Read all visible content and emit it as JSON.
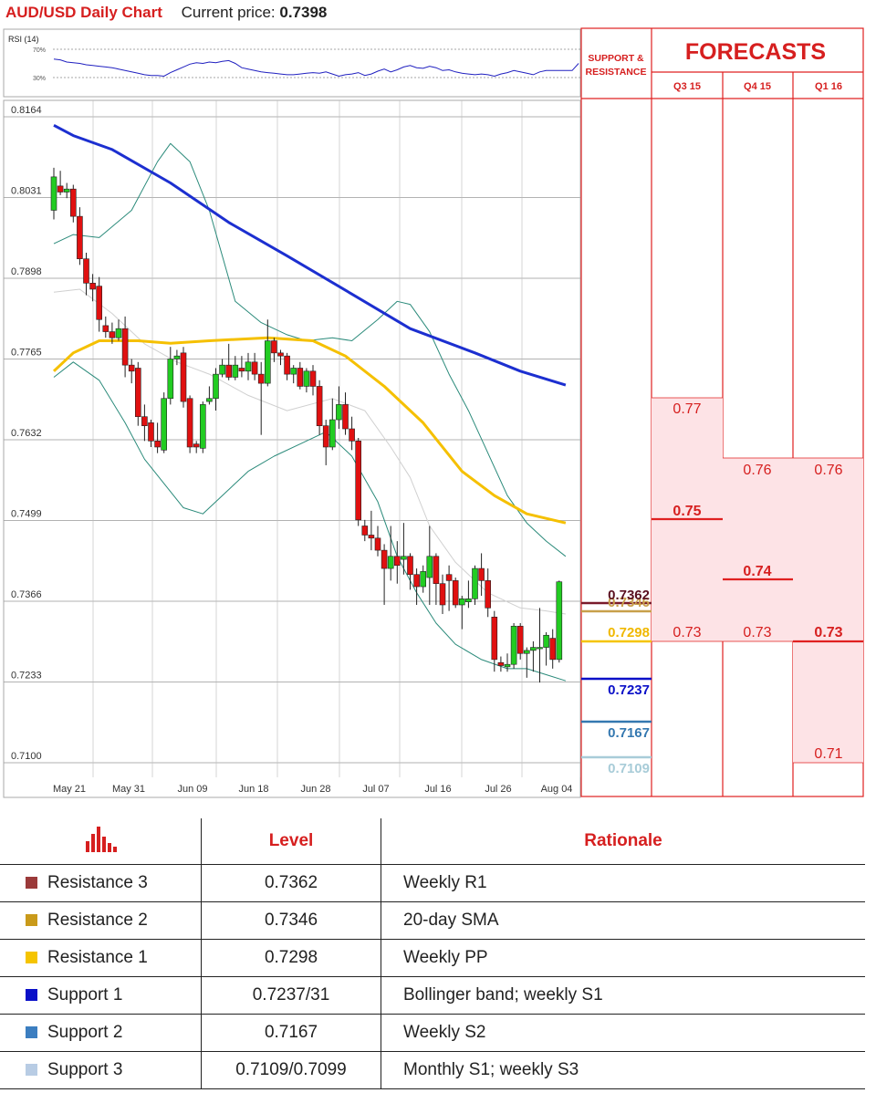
{
  "header": {
    "title": "AUD/USD Daily Chart",
    "price_label": "Current price:",
    "price": "0.7398"
  },
  "rsi": {
    "label": "RSI (14)",
    "levels": [
      "70%",
      "30%"
    ],
    "values": [
      56,
      55,
      52,
      51,
      50,
      48,
      47,
      46,
      45,
      44,
      42,
      40,
      38,
      36,
      34,
      33,
      33,
      32,
      37,
      41,
      45,
      49,
      51,
      50,
      52,
      51,
      53,
      54,
      50,
      44,
      42,
      40,
      38,
      37,
      36,
      35,
      34,
      34,
      35,
      36,
      37,
      36,
      38,
      35,
      32,
      34,
      35,
      37,
      33,
      35,
      39,
      42,
      38,
      41,
      45,
      47,
      44,
      43,
      46,
      44,
      40,
      41,
      38,
      36,
      35,
      34,
      35,
      34,
      32,
      35,
      37,
      40,
      38,
      36,
      34,
      38,
      40,
      40,
      40,
      40,
      40,
      50
    ]
  },
  "forecast": {
    "sr_header": "SUPPORT & RESISTANCE",
    "title": "FORECASTS",
    "columns": [
      "Q3 15",
      "Q4 15",
      "Q1 16"
    ],
    "q3": {
      "top": "0.77",
      "mid": "0.75",
      "bot": "0.73"
    },
    "q4": {
      "top": "0.76",
      "mid": "0.74",
      "bot": "0.73"
    },
    "q1": {
      "top": "0.76",
      "mid": "0.73",
      "bot": "0.71"
    }
  },
  "sr_levels": [
    {
      "value": "0.7362",
      "color": "#7a1a2a"
    },
    {
      "value": "0.7346",
      "color": "#c8a04a"
    },
    {
      "value": "0.7298",
      "color": "#f5c400"
    },
    {
      "value": "0.7237",
      "color": "#0a10c8"
    },
    {
      "value": "0.7167",
      "color": "#3478b0"
    },
    {
      "value": "0.7109",
      "color": "#a8ccd8"
    }
  ],
  "chart_data": {
    "type": "candlestick",
    "title": "AUD/USD Daily Chart",
    "y_ticks": [
      "0.8164",
      "0.8031",
      "0.7898",
      "0.7765",
      "0.7632",
      "0.7499",
      "0.7366",
      "0.7233",
      "0.7100"
    ],
    "ylim": [
      0.7045,
      0.818
    ],
    "x_ticks": [
      "May 21",
      "May 31",
      "Jun 09",
      "Jun 18",
      "Jun 28",
      "Jul 07",
      "Jul 16",
      "Jul 26",
      "Aug 04"
    ],
    "candles": [
      [
        0.801,
        0.8065,
        0.808,
        0.7995
      ],
      [
        0.805,
        0.804,
        0.8075,
        0.8035
      ],
      [
        0.804,
        0.8045,
        0.8055,
        0.803
      ],
      [
        0.8045,
        0.8,
        0.8052,
        0.799
      ],
      [
        0.8,
        0.793,
        0.8015,
        0.792
      ],
      [
        0.793,
        0.789,
        0.794,
        0.787
      ],
      [
        0.789,
        0.788,
        0.7905,
        0.786
      ],
      [
        0.7885,
        0.783,
        0.79,
        0.781
      ],
      [
        0.782,
        0.781,
        0.7835,
        0.78
      ],
      [
        0.781,
        0.78,
        0.7825,
        0.779
      ],
      [
        0.78,
        0.7815,
        0.783,
        0.7795
      ],
      [
        0.7815,
        0.7755,
        0.7835,
        0.7735
      ],
      [
        0.7755,
        0.7745,
        0.7765,
        0.7725
      ],
      [
        0.775,
        0.767,
        0.776,
        0.7655
      ],
      [
        0.767,
        0.7655,
        0.769,
        0.763
      ],
      [
        0.766,
        0.763,
        0.7665,
        0.762
      ],
      [
        0.763,
        0.762,
        0.766,
        0.761
      ],
      [
        0.7615,
        0.77,
        0.771,
        0.761
      ],
      [
        0.77,
        0.7765,
        0.7785,
        0.769
      ],
      [
        0.7765,
        0.777,
        0.778,
        0.7755
      ],
      [
        0.7775,
        0.7695,
        0.7785,
        0.7685
      ],
      [
        0.77,
        0.762,
        0.7705,
        0.761
      ],
      [
        0.7625,
        0.762,
        0.763,
        0.761
      ],
      [
        0.7618,
        0.769,
        0.7695,
        0.761
      ],
      [
        0.7695,
        0.77,
        0.772,
        0.769
      ],
      [
        0.77,
        0.774,
        0.775,
        0.768
      ],
      [
        0.774,
        0.7755,
        0.7765,
        0.7735
      ],
      [
        0.7755,
        0.7735,
        0.779,
        0.773
      ],
      [
        0.7735,
        0.7755,
        0.777,
        0.773
      ],
      [
        0.775,
        0.7745,
        0.777,
        0.7735
      ],
      [
        0.7745,
        0.776,
        0.7775,
        0.773
      ],
      [
        0.776,
        0.774,
        0.7775,
        0.773
      ],
      [
        0.774,
        0.7725,
        0.776,
        0.764
      ],
      [
        0.7725,
        0.7795,
        0.783,
        0.772
      ],
      [
        0.7795,
        0.7775,
        0.78,
        0.776
      ],
      [
        0.7775,
        0.777,
        0.778,
        0.7755
      ],
      [
        0.777,
        0.774,
        0.7775,
        0.773
      ],
      [
        0.774,
        0.775,
        0.7755,
        0.7725
      ],
      [
        0.775,
        0.772,
        0.776,
        0.7715
      ],
      [
        0.772,
        0.7745,
        0.775,
        0.771
      ],
      [
        0.7745,
        0.772,
        0.7755,
        0.7705
      ],
      [
        0.772,
        0.7655,
        0.773,
        0.764
      ],
      [
        0.7655,
        0.762,
        0.7665,
        0.759
      ],
      [
        0.762,
        0.7665,
        0.77,
        0.7615
      ],
      [
        0.7665,
        0.769,
        0.772,
        0.765
      ],
      [
        0.769,
        0.765,
        0.771,
        0.764
      ],
      [
        0.765,
        0.763,
        0.767,
        0.7615
      ],
      [
        0.763,
        0.75,
        0.7635,
        0.749
      ],
      [
        0.749,
        0.7475,
        0.75,
        0.7465
      ],
      [
        0.7475,
        0.747,
        0.7515,
        0.745
      ],
      [
        0.747,
        0.745,
        0.749,
        0.744
      ],
      [
        0.745,
        0.742,
        0.746,
        0.736
      ],
      [
        0.742,
        0.744,
        0.749,
        0.74
      ],
      [
        0.744,
        0.7425,
        0.7465,
        0.7395
      ],
      [
        0.7435,
        0.744,
        0.7495,
        0.741
      ],
      [
        0.744,
        0.741,
        0.7445,
        0.7385
      ],
      [
        0.741,
        0.739,
        0.742,
        0.736
      ],
      [
        0.739,
        0.7415,
        0.7425,
        0.738
      ],
      [
        0.7405,
        0.744,
        0.749,
        0.736
      ],
      [
        0.744,
        0.7395,
        0.7445,
        0.736
      ],
      [
        0.7395,
        0.736,
        0.741,
        0.7345
      ],
      [
        0.741,
        0.74,
        0.7425,
        0.735
      ],
      [
        0.74,
        0.736,
        0.7405,
        0.7355
      ],
      [
        0.736,
        0.737,
        0.7375,
        0.732
      ],
      [
        0.7365,
        0.737,
        0.74,
        0.7355
      ],
      [
        0.737,
        0.742,
        0.7425,
        0.736
      ],
      [
        0.742,
        0.74,
        0.7445,
        0.7375
      ],
      [
        0.74,
        0.7355,
        0.742,
        0.734
      ],
      [
        0.734,
        0.727,
        0.735,
        0.725
      ],
      [
        0.7265,
        0.726,
        0.7275,
        0.725
      ],
      [
        0.7258,
        0.7262,
        0.728,
        0.725
      ],
      [
        0.7262,
        0.7325,
        0.733,
        0.7255
      ],
      [
        0.7325,
        0.728,
        0.733,
        0.727
      ],
      [
        0.728,
        0.7285,
        0.729,
        0.724
      ],
      [
        0.7285,
        0.729,
        0.73,
        0.725
      ],
      [
        0.729,
        0.729,
        0.7355,
        0.7232
      ],
      [
        0.729,
        0.731,
        0.7315,
        0.726
      ],
      [
        0.7305,
        0.727,
        0.732,
        0.7255
      ],
      [
        0.727,
        0.7398,
        0.74,
        0.7265
      ]
    ],
    "sma200": [
      [
        0,
        0.815
      ],
      [
        3,
        0.8133
      ],
      [
        9,
        0.811
      ],
      [
        18,
        0.8055
      ],
      [
        27,
        0.799
      ],
      [
        36,
        0.7935
      ],
      [
        46,
        0.7872
      ],
      [
        55,
        0.7815
      ],
      [
        65,
        0.7775
      ],
      [
        72,
        0.7745
      ],
      [
        79,
        0.7722
      ]
    ],
    "sma50": [
      [
        0,
        0.7745
      ],
      [
        3,
        0.7775
      ],
      [
        7,
        0.7795
      ],
      [
        13,
        0.7795
      ],
      [
        18,
        0.7791
      ],
      [
        24,
        0.7795
      ],
      [
        33,
        0.78
      ],
      [
        40,
        0.7795
      ],
      [
        45,
        0.777
      ],
      [
        51,
        0.772
      ],
      [
        57,
        0.766
      ],
      [
        63,
        0.758
      ],
      [
        68,
        0.754
      ],
      [
        73,
        0.751
      ],
      [
        79,
        0.7495
      ]
    ],
    "bb_upper": [
      [
        0,
        0.7955
      ],
      [
        3,
        0.797
      ],
      [
        7,
        0.7965
      ],
      [
        12,
        0.801
      ],
      [
        16,
        0.809
      ],
      [
        18,
        0.812
      ],
      [
        21,
        0.809
      ],
      [
        24,
        0.801
      ],
      [
        28,
        0.786
      ],
      [
        32,
        0.7825
      ],
      [
        36,
        0.7805
      ],
      [
        39,
        0.7795
      ],
      [
        43,
        0.78
      ],
      [
        46,
        0.7795
      ],
      [
        50,
        0.783
      ],
      [
        53,
        0.786
      ],
      [
        55,
        0.7855
      ],
      [
        58,
        0.781
      ],
      [
        61,
        0.774
      ],
      [
        64,
        0.768
      ],
      [
        67,
        0.761
      ],
      [
        70,
        0.754
      ],
      [
        73,
        0.7495
      ],
      [
        76,
        0.7465
      ],
      [
        79,
        0.744
      ]
    ],
    "bb_lower": [
      [
        0,
        0.7735
      ],
      [
        3,
        0.776
      ],
      [
        7,
        0.773
      ],
      [
        11,
        0.766
      ],
      [
        14,
        0.76
      ],
      [
        17,
        0.756
      ],
      [
        20,
        0.752
      ],
      [
        23,
        0.751
      ],
      [
        26,
        0.754
      ],
      [
        30,
        0.758
      ],
      [
        34,
        0.7605
      ],
      [
        38,
        0.7625
      ],
      [
        42,
        0.7645
      ],
      [
        46,
        0.7605
      ],
      [
        50,
        0.753
      ],
      [
        53,
        0.744
      ],
      [
        56,
        0.738
      ],
      [
        59,
        0.733
      ],
      [
        62,
        0.7295
      ],
      [
        66,
        0.727
      ],
      [
        70,
        0.7255
      ],
      [
        73,
        0.7255
      ],
      [
        76,
        0.7245
      ],
      [
        79,
        0.7235
      ]
    ],
    "bb_mid": [
      [
        0,
        0.7875
      ],
      [
        4,
        0.788
      ],
      [
        9,
        0.784
      ],
      [
        14,
        0.779
      ],
      [
        19,
        0.776
      ],
      [
        24,
        0.774
      ],
      [
        30,
        0.7705
      ],
      [
        36,
        0.768
      ],
      [
        43,
        0.77
      ],
      [
        48,
        0.768
      ],
      [
        52,
        0.762
      ],
      [
        55,
        0.757
      ],
      [
        58,
        0.749
      ],
      [
        62,
        0.743
      ],
      [
        67,
        0.738
      ],
      [
        72,
        0.7355
      ],
      [
        76,
        0.735
      ],
      [
        79,
        0.7345
      ]
    ]
  },
  "levels_table": {
    "headers": [
      "Level",
      "Rationale"
    ],
    "rows": [
      {
        "name": "Resistance 3",
        "level": "0.7362",
        "rationale": "Weekly R1",
        "color": "#9b3a3a"
      },
      {
        "name": "Resistance 2",
        "level": "0.7346",
        "rationale": "20-day SMA",
        "color": "#c99a1a"
      },
      {
        "name": "Resistance 1",
        "level": "0.7298",
        "rationale": "Weekly PP",
        "color": "#f5c400"
      },
      {
        "name": "Support 1",
        "level": "0.7237/31",
        "rationale": "Bollinger band; weekly S1",
        "color": "#0a10c8"
      },
      {
        "name": "Support 2",
        "level": "0.7167",
        "rationale": "Weekly S2",
        "color": "#3c7ec0"
      },
      {
        "name": "Support 3",
        "level": "0.7109/0.7099",
        "rationale": "Monthly S1; weekly S3",
        "color": "#b8cce4"
      }
    ]
  },
  "colors": {
    "bull": "#22cc22",
    "bear": "#e01010",
    "accent": "#d61f1f",
    "sma200": "#1c2fd0",
    "sma50": "#f5c000",
    "bb": "#2a8a7a"
  }
}
